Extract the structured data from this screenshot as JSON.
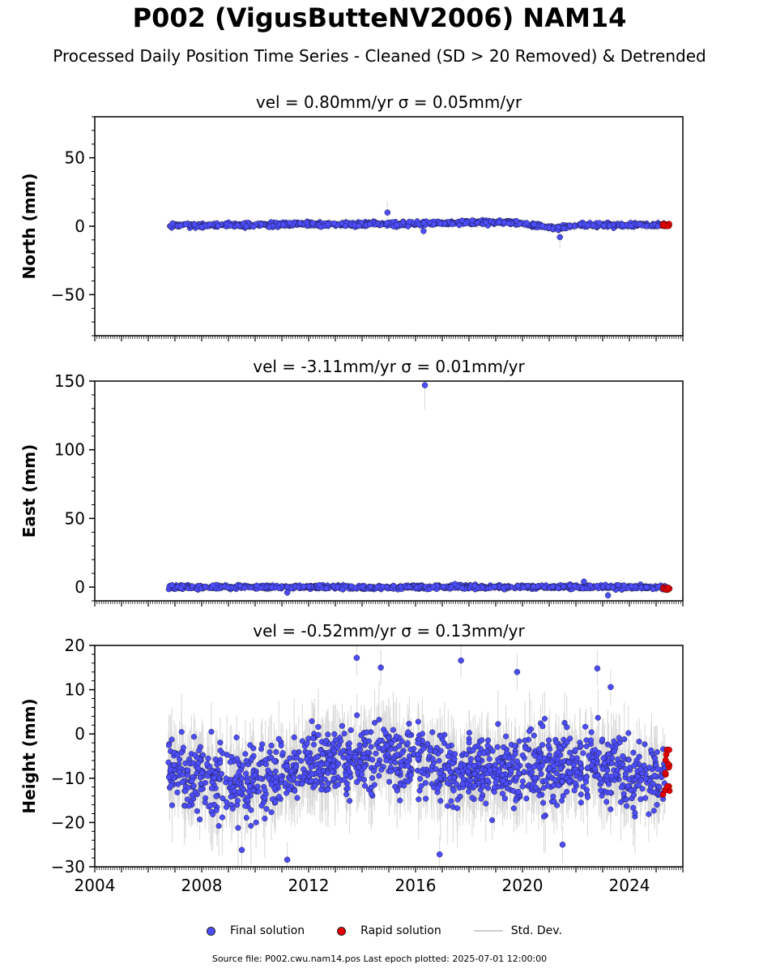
{
  "header": {
    "title": "P002 (VigusButteNV2006) NAM14",
    "subtitle": "Processed Daily Position Time Series - Cleaned (SD > 20 Removed) & Detrended"
  },
  "chart_data": [
    {
      "type": "scatter",
      "component": "north",
      "title": "vel = 0.80mm/yr   σ = 0.05mm/yr",
      "ylabel": "North (mm)",
      "xlim": [
        2004.0,
        2026.0
      ],
      "ylim": [
        -80,
        80
      ],
      "yticks": [
        -50,
        0,
        50
      ],
      "data_start": 2006.75,
      "data_end": 2025.5,
      "baseline": [
        [
          2006.75,
          0.5
        ],
        [
          2010,
          1.0
        ],
        [
          2014,
          1.5
        ],
        [
          2017,
          2.5
        ],
        [
          2019.5,
          3.0
        ],
        [
          2020.5,
          0.5
        ],
        [
          2021.3,
          -1.5
        ],
        [
          2022,
          1.0
        ],
        [
          2025.5,
          1.0
        ]
      ],
      "scatter_sd": 1.2,
      "outliers": [
        [
          2014.95,
          10.0
        ],
        [
          2016.3,
          -3.5
        ],
        [
          2021.4,
          -8.0
        ]
      ],
      "rapid_y_range": [
        0,
        2
      ]
    },
    {
      "type": "scatter",
      "component": "east",
      "title": "vel = -3.11mm/yr   σ = 0.01mm/yr",
      "ylabel": "East (mm)",
      "xlim": [
        2004.0,
        2026.0
      ],
      "ylim": [
        -10,
        150
      ],
      "yticks": [
        0,
        50,
        100,
        150
      ],
      "data_start": 2006.75,
      "data_end": 2025.5,
      "baseline": [
        [
          2006.75,
          0.0
        ],
        [
          2025.5,
          0.0
        ]
      ],
      "scatter_sd": 1.0,
      "outliers": [
        [
          2016.35,
          147.0
        ],
        [
          2011.2,
          -4.0
        ],
        [
          2023.2,
          -6.0
        ],
        [
          2022.3,
          4.0
        ]
      ],
      "rapid_y_range": [
        -2,
        0
      ]
    },
    {
      "type": "scatter",
      "component": "height",
      "title": "vel = -0.52mm/yr   σ = 0.13mm/yr",
      "ylabel": "Height (mm)",
      "xlim": [
        2004.0,
        2026.0
      ],
      "ylim": [
        -30,
        20
      ],
      "yticks": [
        -30,
        -20,
        -10,
        0,
        10,
        20
      ],
      "xticks": [
        2004,
        2008,
        2012,
        2016,
        2020,
        2024
      ],
      "data_start": 2006.75,
      "data_end": 2025.5,
      "baseline": [
        [
          2006.75,
          -7
        ],
        [
          2008,
          -10
        ],
        [
          2010,
          -11
        ],
        [
          2012,
          -7
        ],
        [
          2014,
          -6
        ],
        [
          2016,
          -5
        ],
        [
          2018,
          -9
        ],
        [
          2020,
          -8
        ],
        [
          2022,
          -6
        ],
        [
          2024,
          -9
        ],
        [
          2025.5,
          -10
        ]
      ],
      "scatter_sd": 5.5,
      "outliers": [
        [
          2013.8,
          17.2
        ],
        [
          2014.7,
          15.0
        ],
        [
          2017.7,
          16.6
        ],
        [
          2019.8,
          14.0
        ],
        [
          2022.8,
          14.8
        ],
        [
          2023.3,
          10.6
        ],
        [
          2011.2,
          -28.4
        ],
        [
          2009.5,
          -26.2
        ],
        [
          2016.9,
          -27.2
        ],
        [
          2021.5,
          -25.0
        ]
      ],
      "rapid_y_range": [
        -14,
        -3
      ]
    }
  ],
  "legend": {
    "final": "Final solution",
    "rapid": "Rapid solution",
    "sd": "Std. Dev."
  },
  "footer": {
    "source": "Source file: P002.cwu.nam14.pos  Last epoch plotted: 2025-07-01 12:00:00"
  },
  "colors": {
    "final": "#4d4dff",
    "rapid": "#e00000",
    "sd": "#b8b8b8"
  }
}
